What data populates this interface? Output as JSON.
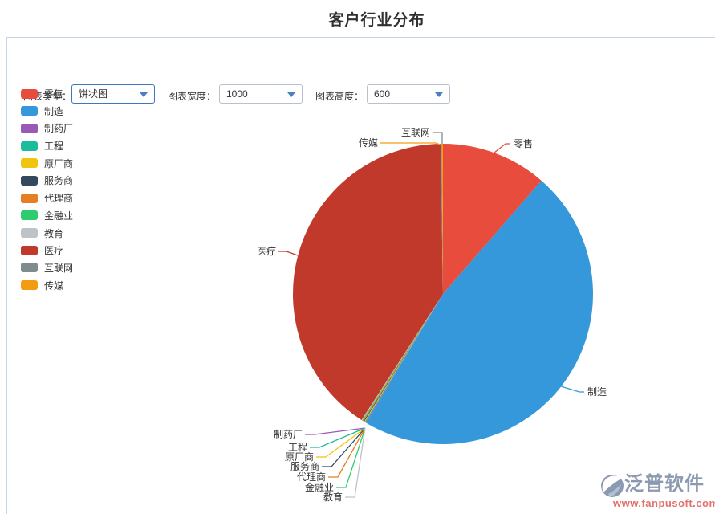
{
  "title": "客户行业分布",
  "toolbar": {
    "fields": [
      {
        "label": "图表类型：",
        "value": "饼状图"
      },
      {
        "label": "图表宽度：",
        "value": "1000"
      },
      {
        "label": "图表高度：",
        "value": "600"
      }
    ]
  },
  "chart_data": {
    "type": "pie",
    "title": "客户行业分布",
    "legend_position": "left",
    "direction": "clockwise",
    "start_angle_deg": 0,
    "categories": [
      "零售",
      "制造",
      "制药厂",
      "工程",
      "原厂商",
      "服务商",
      "代理商",
      "金融业",
      "教育",
      "医疗",
      "互联网",
      "传媒"
    ],
    "values_deg": [
      41,
      169.8,
      0.3,
      0.3,
      0.3,
      0.3,
      0.3,
      0.3,
      0.3,
      146.2,
      0.45,
      0.45
    ],
    "percent_est": [
      11.4,
      47.2,
      0.1,
      0.1,
      0.1,
      0.1,
      0.1,
      0.1,
      0.1,
      40.6,
      0.1,
      0.1
    ],
    "colors": [
      "#e74c3c",
      "#3498db",
      "#9b59b6",
      "#1abc9c",
      "#f1c40f",
      "#34495e",
      "#e67e22",
      "#2ecc71",
      "#bdc3c7",
      "#c0392b",
      "#7f8c8d",
      "#f39c12"
    ]
  },
  "watermark": {
    "brand": "泛普软件",
    "url": "www.fanpusoft.com"
  }
}
